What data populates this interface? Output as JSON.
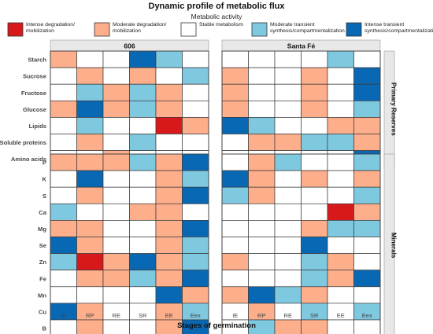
{
  "chart_data": {
    "type": "heatmap",
    "title": "Dynamic profile of metabolic flux",
    "legend_title": "Metabolic activity",
    "legend_placement": "top",
    "xlabel": "Stages of germination",
    "stages": [
      "IE",
      "RP",
      "RE",
      "SR",
      "EE",
      "Eex"
    ],
    "panels": [
      "606",
      "Santa Fé"
    ],
    "groups": [
      {
        "name": "Primary Reserves",
        "rows": [
          "Starch",
          "Sucrose",
          "Fructose",
          "Glucose",
          "Lipids",
          "Soluble proteins",
          "Amino acids"
        ]
      },
      {
        "name": "Minerals",
        "rows": [
          "P",
          "K",
          "S",
          "Ca",
          "Mg",
          "Se",
          "Zn",
          "Fe",
          "Mn",
          "Cu",
          "B"
        ]
      }
    ],
    "categories": [
      {
        "code": 0,
        "label": "Intense degradation/ mobilization",
        "color": "#d7191c"
      },
      {
        "code": 1,
        "label": "Moderate degradation/ mobilization",
        "color": "#fdae8a"
      },
      {
        "code": 2,
        "label": "Stable metabolism",
        "color": "#ffffff"
      },
      {
        "code": 3,
        "label": "Moderate transient synthesis/compartmentalization",
        "color": "#7ec8e0"
      },
      {
        "code": 4,
        "label": "Intense transient synthesis/compartmentalization",
        "color": "#0868b4"
      }
    ],
    "values": {
      "606": {
        "Starch": [
          1,
          2,
          2,
          4,
          3,
          2
        ],
        "Sucrose": [
          2,
          1,
          2,
          1,
          2,
          3
        ],
        "Fructose": [
          2,
          3,
          1,
          3,
          1,
          2
        ],
        "Glucose": [
          1,
          4,
          1,
          3,
          1,
          2
        ],
        "Lipids": [
          2,
          3,
          2,
          2,
          0,
          1
        ],
        "Soluble proteins": [
          2,
          1,
          2,
          3,
          2,
          2
        ],
        "Amino acids": [
          2,
          2,
          1,
          2,
          2,
          2
        ],
        "P": [
          1,
          1,
          1,
          3,
          1,
          4
        ],
        "K": [
          2,
          4,
          2,
          2,
          1,
          3
        ],
        "S": [
          2,
          1,
          2,
          2,
          1,
          4
        ],
        "Ca": [
          3,
          2,
          2,
          1,
          1,
          2
        ],
        "Mg": [
          1,
          1,
          2,
          2,
          1,
          4
        ],
        "Se": [
          4,
          1,
          2,
          2,
          1,
          3
        ],
        "Zn": [
          3,
          0,
          1,
          4,
          1,
          3
        ],
        "Fe": [
          2,
          1,
          1,
          3,
          1,
          4
        ],
        "Mn": [
          2,
          2,
          2,
          2,
          4,
          1
        ],
        "Cu": [
          4,
          1,
          2,
          2,
          1,
          3
        ],
        "B": [
          2,
          1,
          2,
          2,
          1,
          4
        ]
      },
      "Santa Fé": {
        "Starch": [
          2,
          2,
          2,
          2,
          3,
          2
        ],
        "Sucrose": [
          1,
          2,
          2,
          1,
          2,
          4
        ],
        "Fructose": [
          1,
          2,
          2,
          1,
          2,
          4
        ],
        "Glucose": [
          1,
          2,
          2,
          1,
          2,
          3
        ],
        "Lipids": [
          4,
          3,
          2,
          2,
          1,
          1
        ],
        "Soluble proteins": [
          2,
          1,
          1,
          3,
          3,
          1
        ],
        "Amino acids": [
          2,
          2,
          2,
          2,
          2,
          4
        ],
        "P": [
          2,
          1,
          3,
          2,
          2,
          3
        ],
        "K": [
          4,
          1,
          2,
          1,
          2,
          1
        ],
        "S": [
          3,
          1,
          2,
          2,
          2,
          3
        ],
        "Ca": [
          2,
          2,
          2,
          2,
          0,
          1
        ],
        "Mg": [
          2,
          2,
          2,
          1,
          3,
          3
        ],
        "Se": [
          2,
          2,
          2,
          4,
          2,
          2
        ],
        "Zn": [
          1,
          2,
          2,
          3,
          1,
          2
        ],
        "Fe": [
          2,
          2,
          2,
          3,
          1,
          4
        ],
        "Mn": [
          1,
          4,
          3,
          1,
          2,
          2
        ],
        "Cu": [
          2,
          1,
          2,
          3,
          2,
          3
        ],
        "B": [
          2,
          3,
          1,
          1,
          2,
          2
        ]
      }
    }
  }
}
